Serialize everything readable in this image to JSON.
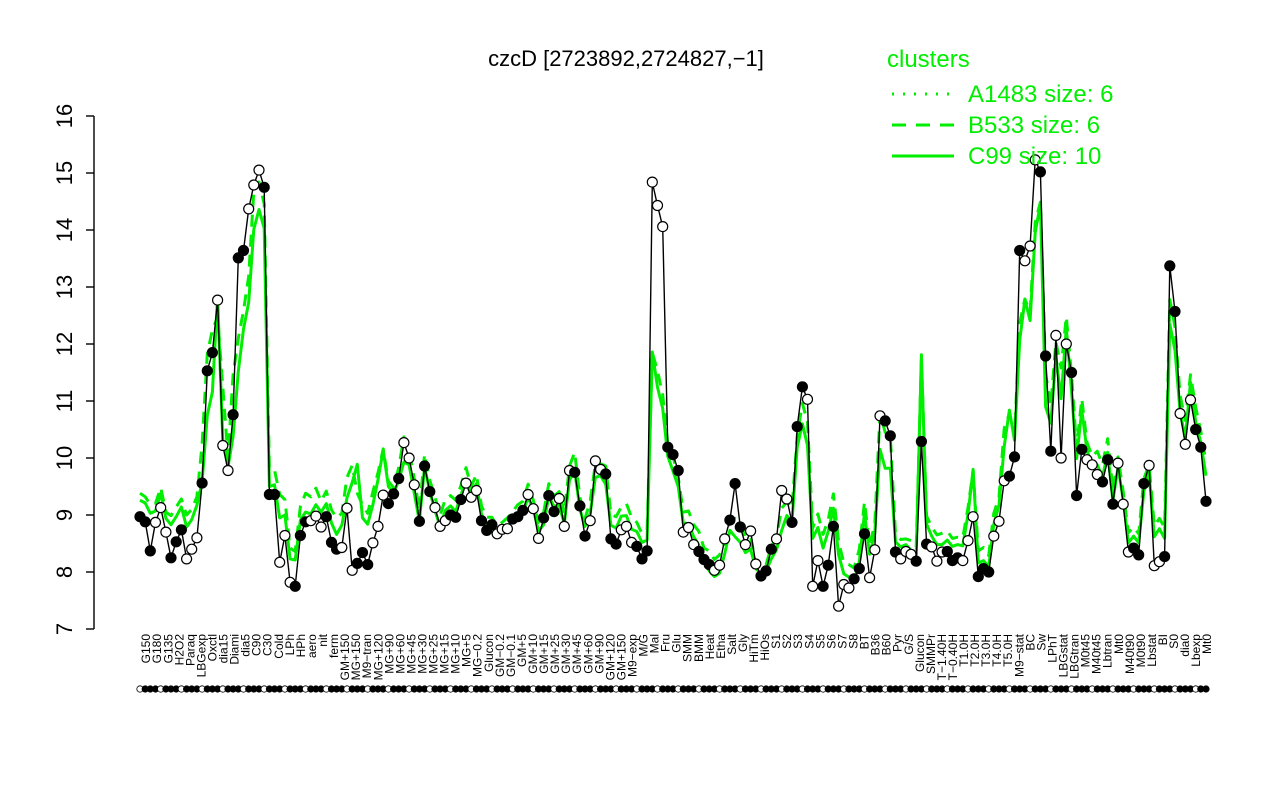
{
  "chart_data": {
    "type": "line",
    "title": "czcD [2723892,2724827,−1]",
    "xlabel": "",
    "ylabel": "",
    "ylim": [
      7,
      16
    ],
    "yticks": [
      7,
      8,
      9,
      10,
      11,
      12,
      13,
      14,
      15,
      16
    ],
    "grid": false,
    "legend_position": "top-right",
    "legend": {
      "title": "clusters",
      "color": "#00ee00",
      "entries": [
        {
          "label": "A1483 size: 6",
          "style": "dotted"
        },
        {
          "label": "B533 size: 6",
          "style": "dashed"
        },
        {
          "label": "C99 size: 10",
          "style": "solid"
        }
      ]
    },
    "x_tick_labels": [
      "G150",
      "G180",
      "G135",
      "H2O2",
      "Paraq",
      "LBGexp",
      "Oxctl",
      "dia15",
      "Diami",
      "dia5",
      "C90",
      "C30",
      "Cold",
      "LPh",
      "HPh",
      "aero",
      "nit",
      "ferm",
      "GM+150",
      "MG+150",
      "M9−tran",
      "MG+120",
      "MG+90",
      "MG+60",
      "MG+45",
      "MG+30",
      "MG+25",
      "MG+15",
      "MG+10",
      "MG+5",
      "MG−0.2",
      "Glucon",
      "GM−0.2",
      "GM−0.1",
      "GM+5",
      "GM+10",
      "GM+15",
      "GM+25",
      "GM+30",
      "GM+45",
      "GM+60",
      "GM+90",
      "GM+120",
      "GM+150",
      "M9−exp",
      "M/G",
      "Mal",
      "Fru",
      "Glu",
      "SMM",
      "BMM",
      "Heat",
      "Etha",
      "Salt",
      "Gly",
      "HiTm",
      "HiOs",
      "S1",
      "S2",
      "S3",
      "S4",
      "S5",
      "S6",
      "S7",
      "S8",
      "BT",
      "B36",
      "B60",
      "Pyr",
      "G/S",
      "Glucon",
      "SMMPr",
      "T−1.40H",
      "T−0.40H",
      "T1.0H",
      "T2.0H",
      "T3.0H",
      "T4.0H",
      "T5.0H",
      "M9−stat",
      "BC",
      "Sw",
      "LPhT",
      "LBGstat",
      "LBGtran",
      "M0t45",
      "M40t45",
      "Lbtran",
      "Mt0",
      "M40t90",
      "M0t90",
      "Lbstat",
      "BI",
      "S0",
      "dia0",
      "Lbexp",
      "Mt0"
    ],
    "cluster_color": "#00ee00",
    "series": [
      {
        "values": [
          8.97,
          8.88,
          8.37,
          8.87,
          9.13,
          8.7,
          8.25,
          8.53,
          8.74,
          8.23,
          8.4,
          8.6,
          9.56,
          11.53,
          11.85,
          12.77,
          10.22,
          9.78,
          10.76,
          13.51,
          13.64,
          14.37,
          14.79,
          15.05,
          14.75,
          9.36,
          9.36,
          8.17,
          8.64,
          7.82,
          7.75,
          8.64,
          8.88,
          8.9,
          8.98,
          8.79,
          8.97,
          8.52,
          8.4,
          8.43,
          9.12,
          8.03,
          8.15,
          8.34,
          8.13,
          8.51,
          8.8,
          9.35,
          9.2,
          9.37,
          9.64,
          10.27,
          10.0,
          9.53,
          8.89,
          9.86,
          9.41,
          9.13,
          8.8,
          8.9,
          9.0,
          8.96,
          9.27,
          9.56,
          9.31,
          9.43,
          8.9,
          8.73,
          8.83,
          8.67,
          8.75,
          8.76,
          8.93,
          8.97,
          9.08,
          9.36,
          9.11,
          8.59,
          8.95,
          9.34,
          9.06,
          9.29,
          8.8,
          9.78,
          9.75,
          9.16,
          8.63,
          8.9,
          9.95,
          9.8,
          9.72,
          8.58,
          8.49,
          8.74,
          8.8,
          8.52,
          8.45,
          8.23,
          8.37,
          14.84,
          14.43,
          14.06,
          10.19,
          10.06,
          9.78,
          8.7,
          8.78,
          8.48,
          8.36,
          8.22,
          8.13,
          8.03,
          8.12,
          8.58,
          8.91,
          9.55,
          8.79,
          8.48,
          8.72,
          8.14,
          7.93,
          8.02,
          8.4,
          8.58,
          9.43,
          9.28,
          8.87,
          10.55,
          11.25,
          11.03,
          7.75,
          8.2,
          7.75,
          8.12,
          8.8,
          7.4,
          7.78,
          7.72,
          7.88,
          8.06,
          8.67,
          7.9,
          8.39,
          10.74,
          10.65,
          10.39,
          8.35,
          8.23,
          8.36,
          8.31,
          8.19,
          10.29,
          8.49,
          8.44,
          8.19,
          8.35,
          8.36,
          8.2,
          8.25,
          8.2,
          8.55,
          8.97,
          7.92,
          8.06,
          8.0,
          8.63,
          8.89,
          9.6,
          9.68,
          10.02,
          13.64,
          13.46,
          13.72,
          15.23,
          15.02,
          11.79,
          10.12,
          12.15,
          10.0,
          12.0,
          11.5,
          9.34,
          10.15,
          9.97,
          9.88,
          9.71,
          9.58,
          9.97,
          9.19,
          9.91,
          9.19,
          8.35,
          8.42,
          8.3,
          9.55,
          9.87,
          8.11,
          8.18,
          8.27,
          13.37,
          12.57,
          10.78,
          10.24,
          11.02,
          10.5,
          10.19,
          9.24
        ]
      },
      {
        "values": [
          9.38,
          9.32,
          9.18,
          9.2,
          9.48,
          9.05,
          8.99,
          9.14,
          9.28,
          9.0,
          9.1,
          9.32,
          10.24,
          11.83,
          12.25,
          12.47,
          11.25,
          10.02,
          11.46,
          12.1,
          12.58,
          13.19,
          14.68,
          14.84,
          14.46,
          9.81,
          9.79,
          9.36,
          9.27,
          8.42,
          8.36,
          9.15,
          9.38,
          9.32,
          9.47,
          9.24,
          9.42,
          9.09,
          8.95,
          9.03,
          9.66,
          9.87,
          9.38,
          9.18,
          9.03,
          9.41,
          9.74,
          10.16,
          9.59,
          9.48,
          9.83,
          10.37,
          10.11,
          9.64,
          9.08,
          10.07,
          9.61,
          9.31,
          8.99,
          9.28,
          9.34,
          9.26,
          9.51,
          9.83,
          9.5,
          9.71,
          9.16,
          8.96,
          8.96,
          8.8,
          8.87,
          8.95,
          9.06,
          9.18,
          9.24,
          9.54,
          9.26,
          8.87,
          9.04,
          9.55,
          9.33,
          9.41,
          9.03,
          9.86,
          10.1,
          9.31,
          8.94,
          9.24,
          9.9,
          9.9,
          9.86,
          9.01,
          8.97,
          9.14,
          9.2,
          8.96,
          8.87,
          8.67,
          8.74,
          11.85,
          11.53,
          11.11,
          10.24,
          10.04,
          9.66,
          9.05,
          9.07,
          8.83,
          8.71,
          8.42,
          8.37,
          8.22,
          8.3,
          8.52,
          8.9,
          8.94,
          8.85,
          8.62,
          8.63,
          8.13,
          8.05,
          8.13,
          8.45,
          8.61,
          9.12,
          9.23,
          9.12,
          10.39,
          10.96,
          10.63,
          8.77,
          9.02,
          8.66,
          8.92,
          9.37,
          8.53,
          8.16,
          8.13,
          8.07,
          8.4,
          9.23,
          8.47,
          8.84,
          10.78,
          10.45,
          10.38,
          8.66,
          8.57,
          8.58,
          8.55,
          8.44,
          11.73,
          8.98,
          8.79,
          8.65,
          8.68,
          8.72,
          8.59,
          8.61,
          8.6,
          9.13,
          9.78,
          8.37,
          8.43,
          8.29,
          9.03,
          9.31,
          10.52,
          10.78,
          10.39,
          12.37,
          12.79,
          12.56,
          14.13,
          14.49,
          11.48,
          10.92,
          12.04,
          11.58,
          12.48,
          11.47,
          10.18,
          11.04,
          10.27,
          10.03,
          10.12,
          9.88,
          10.34,
          9.43,
          10.02,
          9.41,
          8.69,
          8.79,
          8.67,
          9.64,
          9.88,
          8.81,
          8.94,
          8.78,
          12.78,
          12.3,
          11.1,
          10.66,
          11.46,
          10.89,
          10.47,
          9.92
        ]
      },
      {
        "values": [
          9.26,
          9.21,
          9.03,
          9.07,
          9.38,
          8.94,
          8.83,
          8.97,
          9.14,
          8.79,
          8.92,
          9.17,
          9.58,
          10.75,
          11.16,
          12.84,
          10.32,
          9.84,
          10.38,
          11.52,
          12.26,
          12.73,
          14.01,
          14.36,
          14.03,
          9.5,
          9.53,
          8.95,
          9.0,
          8.23,
          8.21,
          8.91,
          9.05,
          9.02,
          9.18,
          9.05,
          9.2,
          8.86,
          8.66,
          8.82,
          9.3,
          9.57,
          9.89,
          8.95,
          8.84,
          9.18,
          9.62,
          10.14,
          9.5,
          9.38,
          9.6,
          9.93,
          9.88,
          9.38,
          8.89,
          9.85,
          9.41,
          9.08,
          8.79,
          9.08,
          9.16,
          9.06,
          9.34,
          9.62,
          9.38,
          9.55,
          9.01,
          8.81,
          8.78,
          8.65,
          8.74,
          8.79,
          8.92,
          9.0,
          9.06,
          9.3,
          9.1,
          8.72,
          8.83,
          9.33,
          9.15,
          9.17,
          8.85,
          9.61,
          9.78,
          9.1,
          8.8,
          9.03,
          9.66,
          9.69,
          9.54,
          8.82,
          8.77,
          8.98,
          8.99,
          8.75,
          8.71,
          8.52,
          8.56,
          11.86,
          11.24,
          10.87,
          10.03,
          9.77,
          9.5,
          8.86,
          8.85,
          8.62,
          8.47,
          8.17,
          8.02,
          7.92,
          7.98,
          8.32,
          8.73,
          8.62,
          8.52,
          8.34,
          8.4,
          8.06,
          7.97,
          8.02,
          8.23,
          8.39,
          8.73,
          8.99,
          8.88,
          10.19,
          10.6,
          10.22,
          8.59,
          8.78,
          8.42,
          8.71,
          9.12,
          8.3,
          7.97,
          7.91,
          7.85,
          8.18,
          9.03,
          8.31,
          8.68,
          10.15,
          9.82,
          9.82,
          8.53,
          8.44,
          8.48,
          8.38,
          8.28,
          11.81,
          8.84,
          8.63,
          8.48,
          8.48,
          8.56,
          8.45,
          8.48,
          8.46,
          9.01,
          9.8,
          8.16,
          8.2,
          8.09,
          8.84,
          9.17,
          10.2,
          10.84,
          10.31,
          12.06,
          12.78,
          12.41,
          13.95,
          14.46,
          10.9,
          10.61,
          11.77,
          11.04,
          12.28,
          11.19,
          9.99,
          10.84,
          10.13,
          9.87,
          9.88,
          9.66,
          10.1,
          9.25,
          9.84,
          9.27,
          8.51,
          8.63,
          8.51,
          9.42,
          9.73,
          8.62,
          8.76,
          8.59,
          12.35,
          11.89,
          10.81,
          10.35,
          11.33,
          10.63,
          10.27,
          9.69
        ]
      }
    ]
  }
}
